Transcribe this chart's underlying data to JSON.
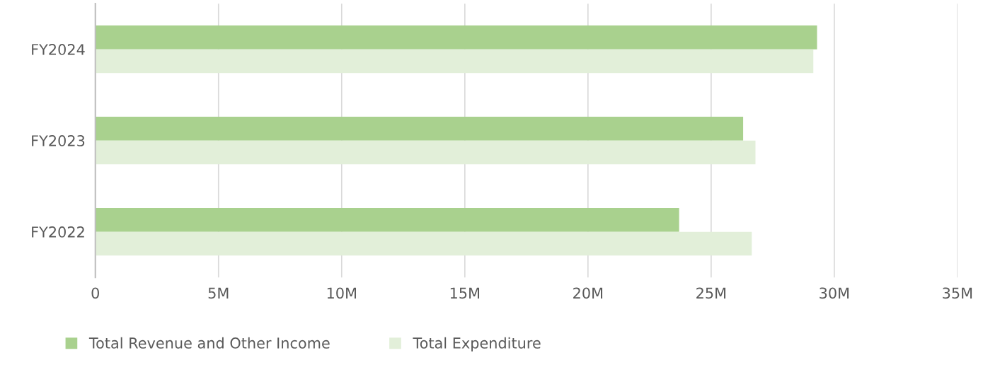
{
  "chart_data": {
    "type": "bar",
    "orientation": "horizontal",
    "categories": [
      "FY2024",
      "FY2023",
      "FY2022"
    ],
    "series": [
      {
        "name": "Total Revenue and Other Income",
        "color": "#a9d18e",
        "values": [
          29300000,
          26300000,
          23700000
        ]
      },
      {
        "name": "Total Expenditure",
        "color": "#e2efd9",
        "values": [
          29150000,
          26800000,
          26650000
        ]
      }
    ],
    "xlim": [
      0,
      35000000
    ],
    "xticks": [
      0,
      {
        "value": 5000000,
        "label": "5M"
      },
      {
        "value": 10000000,
        "label": "10M"
      },
      {
        "value": 15000000,
        "label": "15M"
      },
      {
        "value": 20000000,
        "label": "20M"
      },
      {
        "value": 25000000,
        "label": "25M"
      },
      {
        "value": 30000000,
        "label": "30M"
      },
      {
        "value": 35000000,
        "label": "35M"
      }
    ],
    "grid": "x",
    "legend": "bottom left"
  }
}
